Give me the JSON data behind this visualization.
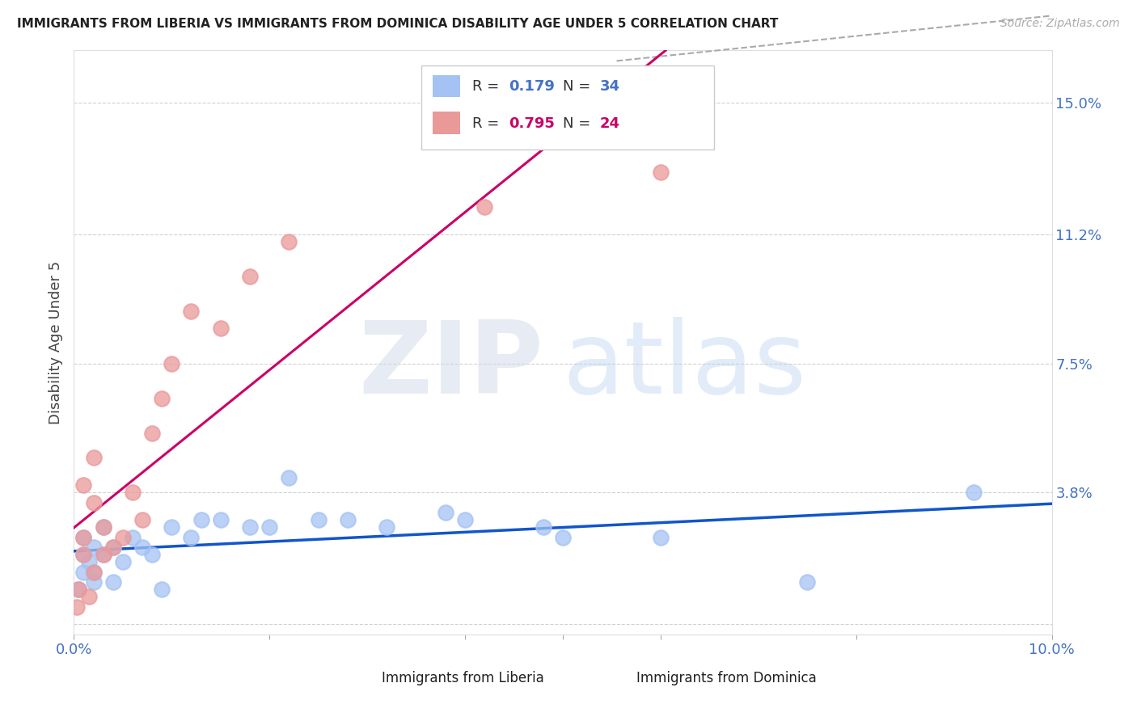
{
  "title": "IMMIGRANTS FROM LIBERIA VS IMMIGRANTS FROM DOMINICA DISABILITY AGE UNDER 5 CORRELATION CHART",
  "source": "Source: ZipAtlas.com",
  "ylabel": "Disability Age Under 5",
  "xlim": [
    0.0,
    0.1
  ],
  "ylim": [
    -0.003,
    0.165
  ],
  "liberia_R": 0.179,
  "liberia_N": 34,
  "dominica_R": 0.795,
  "dominica_N": 24,
  "liberia_color": "#a4c2f4",
  "dominica_color": "#ea9999",
  "liberia_line_color": "#1155cc",
  "dominica_line_color": "#cc0066",
  "background_color": "#ffffff",
  "grid_color": "#cccccc",
  "ytick_vals": [
    0.0,
    0.038,
    0.075,
    0.112,
    0.15
  ],
  "ytick_labels": [
    "",
    "3.8%",
    "7.5%",
    "11.2%",
    "15.0%"
  ],
  "liberia_x": [
    0.0005,
    0.001,
    0.001,
    0.001,
    0.0015,
    0.002,
    0.002,
    0.002,
    0.003,
    0.003,
    0.004,
    0.004,
    0.005,
    0.006,
    0.007,
    0.008,
    0.009,
    0.01,
    0.012,
    0.013,
    0.015,
    0.018,
    0.02,
    0.022,
    0.025,
    0.028,
    0.032,
    0.038,
    0.04,
    0.048,
    0.05,
    0.06,
    0.075,
    0.092
  ],
  "liberia_y": [
    0.01,
    0.015,
    0.02,
    0.025,
    0.018,
    0.015,
    0.022,
    0.012,
    0.02,
    0.028,
    0.022,
    0.012,
    0.018,
    0.025,
    0.022,
    0.02,
    0.01,
    0.028,
    0.025,
    0.03,
    0.03,
    0.028,
    0.028,
    0.042,
    0.03,
    0.03,
    0.028,
    0.032,
    0.03,
    0.028,
    0.025,
    0.025,
    0.012,
    0.038
  ],
  "dominica_x": [
    0.0003,
    0.0005,
    0.001,
    0.001,
    0.001,
    0.0015,
    0.002,
    0.002,
    0.002,
    0.003,
    0.003,
    0.004,
    0.005,
    0.006,
    0.007,
    0.008,
    0.009,
    0.01,
    0.012,
    0.015,
    0.018,
    0.022,
    0.042,
    0.06
  ],
  "dominica_y": [
    0.005,
    0.01,
    0.02,
    0.025,
    0.04,
    0.008,
    0.015,
    0.035,
    0.048,
    0.02,
    0.028,
    0.022,
    0.025,
    0.038,
    0.03,
    0.055,
    0.065,
    0.075,
    0.09,
    0.085,
    0.1,
    0.11,
    0.12,
    0.13
  ]
}
